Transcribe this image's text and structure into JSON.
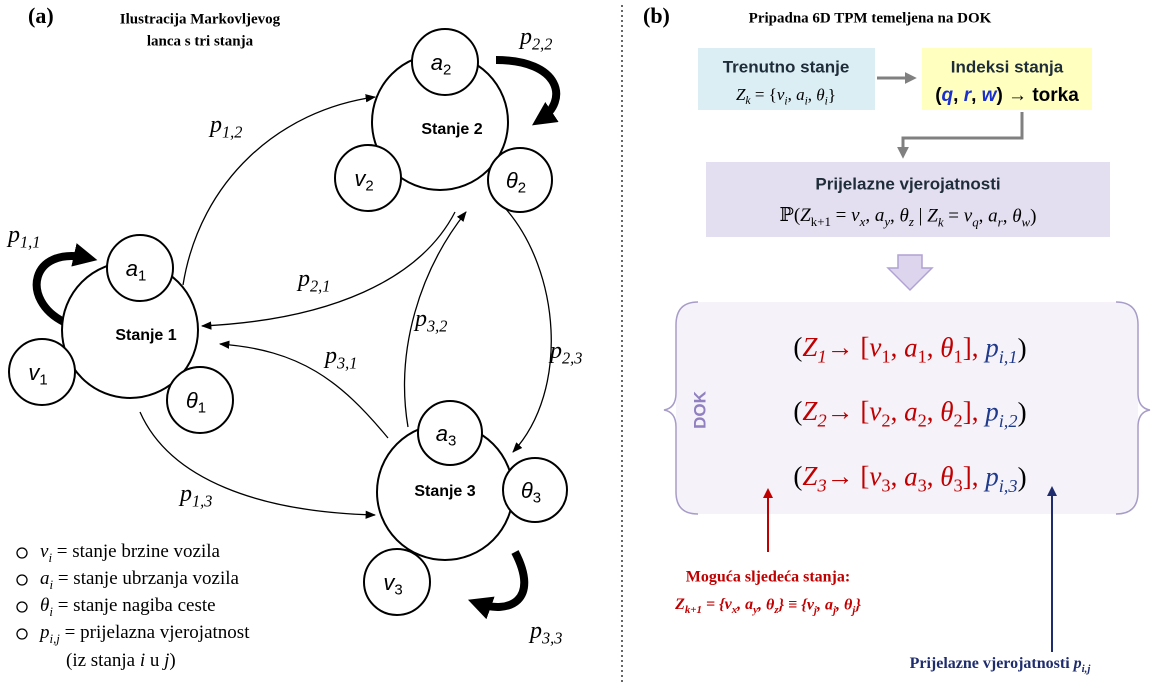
{
  "panel_a": {
    "label": "(a)",
    "title": [
      "Ilustracija Markovljevog",
      "lanca s tri stanja"
    ],
    "states": [
      {
        "name": "Stanje 1",
        "sub": [
          [
            {
              "t": "a",
              "i": true
            },
            {
              "t": "1",
              "s": true
            }
          ],
          [
            {
              "t": "v",
              "i": true
            },
            {
              "t": "1",
              "s": true
            }
          ],
          [
            {
              "t": "θ",
              "i": true
            },
            {
              "t": "1",
              "s": true
            }
          ]
        ]
      },
      {
        "name": "Stanje 2",
        "sub": [
          [
            {
              "t": "a",
              "i": true
            },
            {
              "t": "2",
              "s": true
            }
          ],
          [
            {
              "t": "v",
              "i": true
            },
            {
              "t": "2",
              "s": true
            }
          ],
          [
            {
              "t": "θ",
              "i": true
            },
            {
              "t": "2",
              "s": true
            }
          ]
        ]
      },
      {
        "name": "Stanje 3",
        "sub": [
          [
            {
              "t": "a",
              "i": true
            },
            {
              "t": "3",
              "s": true
            }
          ],
          [
            {
              "t": "v",
              "i": true
            },
            {
              "t": "3",
              "s": true
            }
          ],
          [
            {
              "t": "θ",
              "i": true
            },
            {
              "t": "3",
              "s": true
            }
          ]
        ]
      }
    ],
    "transitions": [
      [
        {
          "t": "p",
          "i": true
        },
        {
          "t": "1,1",
          "s": true,
          "i": true
        }
      ],
      [
        {
          "t": "p",
          "i": true
        },
        {
          "t": "1,2",
          "s": true,
          "i": true
        }
      ],
      [
        {
          "t": "p",
          "i": true
        },
        {
          "t": "1,3",
          "s": true,
          "i": true
        }
      ],
      [
        {
          "t": "p",
          "i": true
        },
        {
          "t": "2,1",
          "s": true,
          "i": true
        }
      ],
      [
        {
          "t": "p",
          "i": true
        },
        {
          "t": "2,2",
          "s": true,
          "i": true
        }
      ],
      [
        {
          "t": "p",
          "i": true
        },
        {
          "t": "2,3",
          "s": true,
          "i": true
        }
      ],
      [
        {
          "t": "p",
          "i": true
        },
        {
          "t": "3,1",
          "s": true,
          "i": true
        }
      ],
      [
        {
          "t": "p",
          "i": true
        },
        {
          "t": "3,2",
          "s": true,
          "i": true
        }
      ],
      [
        {
          "t": "p",
          "i": true
        },
        {
          "t": "3,3",
          "s": true,
          "i": true
        }
      ]
    ],
    "legend": [
      [
        {
          "t": "v",
          "i": true
        },
        {
          "t": "i",
          "s": true,
          "i": true
        },
        {
          "t": " = stanje brzine vozila"
        }
      ],
      [
        {
          "t": "a",
          "i": true
        },
        {
          "t": "i",
          "s": true,
          "i": true
        },
        {
          "t": " = stanje ubrzanja vozila"
        }
      ],
      [
        {
          "t": "θ",
          "i": true
        },
        {
          "t": "i",
          "s": true,
          "i": true
        },
        {
          "t": " = stanje nagiba ceste"
        }
      ],
      [
        {
          "t": "p",
          "i": true
        },
        {
          "t": "i,j",
          "s": true,
          "i": true
        },
        {
          "t": " = prijelazna vjerojatnost"
        }
      ],
      [
        {
          "t": "(iz stanja "
        },
        {
          "t": "i",
          "i": true
        },
        {
          "t": " u "
        },
        {
          "t": "j",
          "i": true
        },
        {
          "t": ")"
        }
      ]
    ]
  },
  "panel_b": {
    "label": "(b)",
    "title": "Pripadna 6D TPM temeljena na DOK",
    "current_state": {
      "heading": "Trenutno stanje",
      "formula": [
        {
          "t": "Z",
          "i": true
        },
        {
          "t": "k",
          "s": true,
          "i": true
        },
        {
          "t": " = {"
        },
        {
          "t": "v",
          "i": true
        },
        {
          "t": "i",
          "s": true,
          "i": true
        },
        {
          "t": ", "
        },
        {
          "t": "a",
          "i": true
        },
        {
          "t": "i",
          "s": true,
          "i": true
        },
        {
          "t": ", "
        },
        {
          "t": "θ",
          "i": true
        },
        {
          "t": "i",
          "s": true,
          "i": true
        },
        {
          "t": "}"
        }
      ]
    },
    "state_indices": {
      "heading": "Indeksi stanja",
      "formula": [
        {
          "t": "(",
          "b": true
        },
        {
          "t": "q",
          "b": true,
          "i": true,
          "c": "#1a2fd0"
        },
        {
          "t": ", ",
          "b": true
        },
        {
          "t": "r",
          "b": true,
          "i": true,
          "c": "#1a2fd0"
        },
        {
          "t": ", ",
          "b": true
        },
        {
          "t": "w",
          "b": true,
          "i": true,
          "c": "#1a2fd0"
        },
        {
          "t": ") → torka",
          "b": true
        }
      ]
    },
    "transition_probabilities": {
      "heading": "Prijelazne vjerojatnosti",
      "formula": [
        {
          "t": "ℙ("
        },
        {
          "t": "Z",
          "i": true
        },
        {
          "t": "k+1",
          "s": true
        },
        {
          "t": " = "
        },
        {
          "t": "v",
          "i": true
        },
        {
          "t": "x",
          "s": true,
          "i": true
        },
        {
          "t": ", "
        },
        {
          "t": "a",
          "i": true
        },
        {
          "t": "y",
          "s": true,
          "i": true
        },
        {
          "t": ", "
        },
        {
          "t": "θ",
          "i": true
        },
        {
          "t": "z",
          "s": true,
          "i": true
        },
        {
          "t": " | "
        },
        {
          "t": "Z",
          "i": true
        },
        {
          "t": "k",
          "s": true,
          "i": true
        },
        {
          "t": " = "
        },
        {
          "t": "v",
          "i": true
        },
        {
          "t": "q",
          "s": true,
          "i": true
        },
        {
          "t": ", "
        },
        {
          "t": "a",
          "i": true
        },
        {
          "t": "r",
          "s": true,
          "i": true
        },
        {
          "t": ", "
        },
        {
          "t": "θ",
          "i": true
        },
        {
          "t": "w",
          "s": true,
          "i": true
        },
        {
          "t": ")"
        }
      ]
    },
    "dok_label": "DOK",
    "dok_entries": [
      [
        {
          "t": "("
        },
        {
          "t": "Z",
          "i": true,
          "c": "#c00000"
        },
        {
          "t": "1",
          "s": true,
          "i": true,
          "c": "#c00000"
        },
        {
          "t": "→ [",
          "c": "#c00000"
        },
        {
          "t": "v",
          "i": true,
          "c": "#c00000"
        },
        {
          "t": "1",
          "s": true,
          "c": "#c00000"
        },
        {
          "t": ", ",
          "c": "#c00000"
        },
        {
          "t": "a",
          "i": true,
          "c": "#c00000"
        },
        {
          "t": "1",
          "s": true,
          "c": "#c00000"
        },
        {
          "t": ", ",
          "c": "#c00000"
        },
        {
          "t": "θ",
          "i": true,
          "c": "#c00000"
        },
        {
          "t": "1",
          "s": true,
          "c": "#c00000"
        },
        {
          "t": "], ",
          "c": "#c00000"
        },
        {
          "t": "p",
          "i": true,
          "c": "#1f3a8a"
        },
        {
          "t": "i,1",
          "s": true,
          "i": true,
          "c": "#1f3a8a"
        },
        {
          "t": ")"
        }
      ],
      [
        {
          "t": "("
        },
        {
          "t": "Z",
          "i": true,
          "c": "#c00000"
        },
        {
          "t": "2",
          "s": true,
          "i": true,
          "c": "#c00000"
        },
        {
          "t": "→ [",
          "c": "#c00000"
        },
        {
          "t": "v",
          "i": true,
          "c": "#c00000"
        },
        {
          "t": "2",
          "s": true,
          "c": "#c00000"
        },
        {
          "t": ", ",
          "c": "#c00000"
        },
        {
          "t": "a",
          "i": true,
          "c": "#c00000"
        },
        {
          "t": "2",
          "s": true,
          "c": "#c00000"
        },
        {
          "t": ", ",
          "c": "#c00000"
        },
        {
          "t": "θ",
          "i": true,
          "c": "#c00000"
        },
        {
          "t": "2",
          "s": true,
          "c": "#c00000"
        },
        {
          "t": "], ",
          "c": "#c00000"
        },
        {
          "t": "p",
          "i": true,
          "c": "#1f3a8a"
        },
        {
          "t": "i,2",
          "s": true,
          "i": true,
          "c": "#1f3a8a"
        },
        {
          "t": ")"
        }
      ],
      [
        {
          "t": "("
        },
        {
          "t": "Z",
          "i": true,
          "c": "#c00000"
        },
        {
          "t": "3",
          "s": true,
          "i": true,
          "c": "#c00000"
        },
        {
          "t": "→ [",
          "c": "#c00000"
        },
        {
          "t": "v",
          "i": true,
          "c": "#c00000"
        },
        {
          "t": "3",
          "s": true,
          "c": "#c00000"
        },
        {
          "t": ", ",
          "c": "#c00000"
        },
        {
          "t": "a",
          "i": true,
          "c": "#c00000"
        },
        {
          "t": "3",
          "s": true,
          "c": "#c00000"
        },
        {
          "t": ", ",
          "c": "#c00000"
        },
        {
          "t": "θ",
          "i": true,
          "c": "#c00000"
        },
        {
          "t": "3",
          "s": true,
          "c": "#c00000"
        },
        {
          "t": "], ",
          "c": "#c00000"
        },
        {
          "t": "p",
          "i": true,
          "c": "#1f3a8a"
        },
        {
          "t": "i,3",
          "s": true,
          "i": true,
          "c": "#1f3a8a"
        },
        {
          "t": ")"
        }
      ]
    ],
    "next_states": {
      "heading": "Moguća sljedeća stanja:",
      "formula": [
        {
          "t": "Z",
          "i": true
        },
        {
          "t": "k+1",
          "s": true,
          "i": true
        },
        {
          "t": " = {"
        },
        {
          "t": "v",
          "i": true
        },
        {
          "t": "x",
          "s": true,
          "i": true
        },
        {
          "t": ", "
        },
        {
          "t": "a",
          "i": true
        },
        {
          "t": "y",
          "s": true,
          "i": true
        },
        {
          "t": ", "
        },
        {
          "t": "θ",
          "i": true
        },
        {
          "t": "z",
          "s": true,
          "i": true
        },
        {
          "t": "} ≡ {"
        },
        {
          "t": "v",
          "i": true
        },
        {
          "t": "j",
          "s": true,
          "i": true
        },
        {
          "t": ", "
        },
        {
          "t": "a",
          "i": true
        },
        {
          "t": "j",
          "s": true,
          "i": true
        },
        {
          "t": ", "
        },
        {
          "t": "θ",
          "i": true
        },
        {
          "t": "j",
          "s": true,
          "i": true
        },
        {
          "t": "}"
        }
      ]
    },
    "probabilities_caption": [
      {
        "t": "Prijelazne  vjerojatnosti "
      },
      {
        "t": "p",
        "i": true
      },
      {
        "t": "i,j",
        "s": true,
        "i": true
      }
    ]
  }
}
